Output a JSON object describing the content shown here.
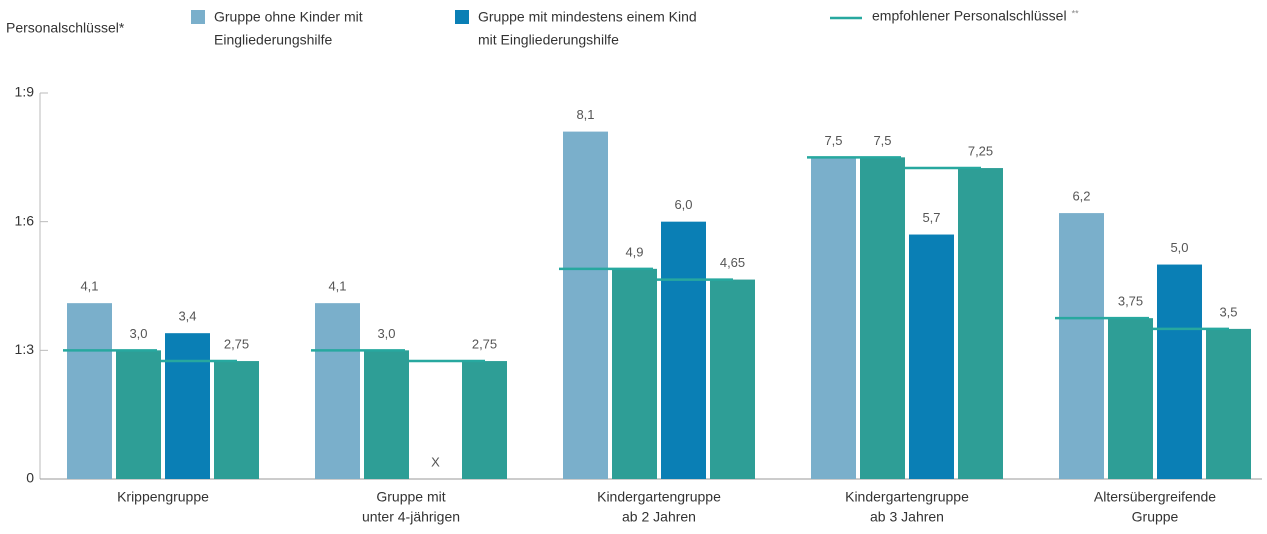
{
  "chart_data": {
    "type": "bar",
    "ylabel": "Personalschlüssel*",
    "categories": [
      [
        "Krippengruppe"
      ],
      [
        "Gruppe mit",
        "unter 4-jährigen"
      ],
      [
        "Kindergartengruppe",
        "ab 2 Jahren"
      ],
      [
        "Kindergartengruppe",
        "ab 3 Jahren"
      ],
      [
        "Altersübergreifende",
        "Gruppe"
      ]
    ],
    "series": [
      {
        "name": [
          "Gruppe ohne Kinder mit",
          "Eingliederungshilfe"
        ],
        "color": "#7aafcb",
        "values": [
          4.1,
          4.1,
          8.1,
          7.5,
          6.2
        ],
        "value_labels": [
          "4,1",
          "4,1",
          "8,1",
          "7,5",
          "6,2"
        ]
      },
      {
        "name": [
          "Gruppe mit mindestens einem Kind",
          "mit Eingliederungshilfe"
        ],
        "color": "#0a7fb5",
        "values": [
          3.4,
          null,
          6.0,
          5.7,
          5.0
        ],
        "value_labels": [
          "3,4",
          "X",
          "6,0",
          "5,7",
          "5,0"
        ]
      }
    ],
    "recommended": {
      "name": "empfohlener Personalschlüssel",
      "note": "**",
      "color": "#2e9e96",
      "line_color": "#27a89f",
      "values_without": [
        3.0,
        3.0,
        4.9,
        7.5,
        3.75
      ],
      "labels_without": [
        "3,0",
        "3,0",
        "4,9",
        "7,5",
        "3,75"
      ],
      "values_with": [
        2.75,
        2.75,
        4.65,
        7.25,
        3.5
      ],
      "labels_with": [
        "2,75",
        "2,75",
        "4,65",
        "7,25",
        "3,5"
      ]
    },
    "ylim": [
      0,
      9
    ],
    "yticks": [
      0,
      {
        "value": 3,
        "label": "1:3"
      },
      {
        "value": 6,
        "label": "1:6"
      },
      {
        "value": 9,
        "label": "1:9"
      }
    ]
  }
}
